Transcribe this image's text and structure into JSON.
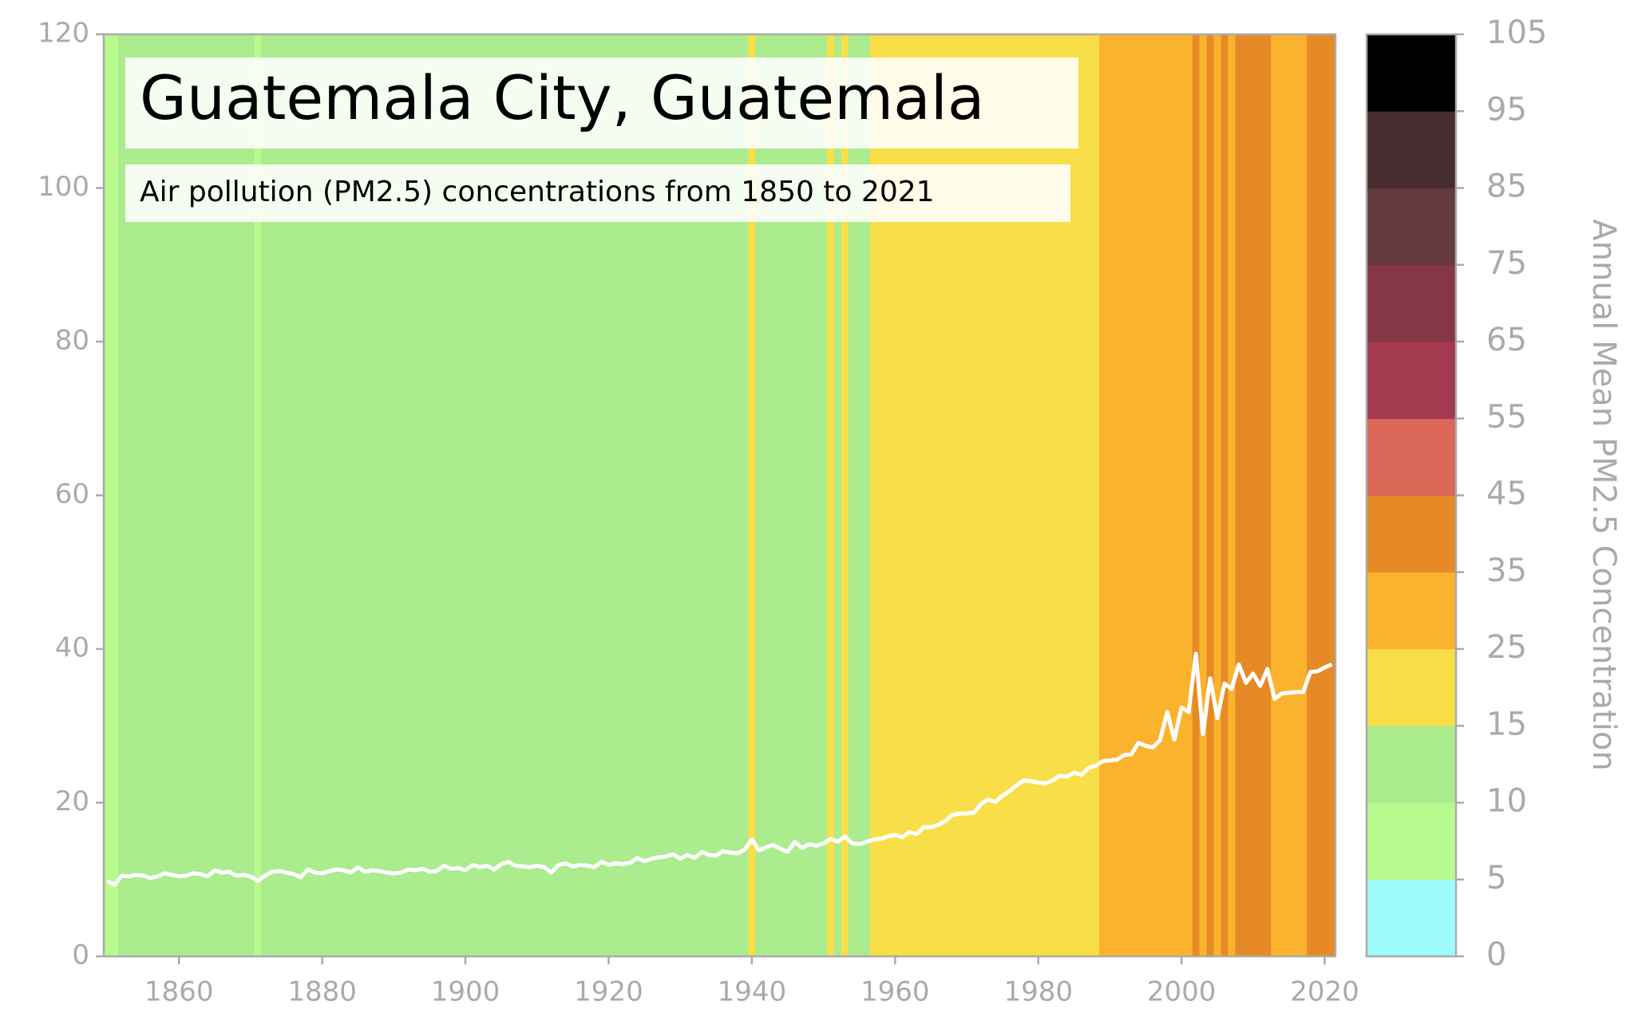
{
  "chart_data": {
    "type": "climate-stripes",
    "title": "Guatemala City, Guatemala",
    "subtitle": "Air pollution (PM2.5) concentrations from 1850 to 2021",
    "x": [
      1850,
      1851,
      1852,
      1853,
      1854,
      1855,
      1856,
      1857,
      1858,
      1859,
      1860,
      1861,
      1862,
      1863,
      1864,
      1865,
      1866,
      1867,
      1868,
      1869,
      1870,
      1871,
      1872,
      1873,
      1874,
      1875,
      1876,
      1877,
      1878,
      1879,
      1880,
      1881,
      1882,
      1883,
      1884,
      1885,
      1886,
      1887,
      1888,
      1889,
      1890,
      1891,
      1892,
      1893,
      1894,
      1895,
      1896,
      1897,
      1898,
      1899,
      1900,
      1901,
      1902,
      1903,
      1904,
      1905,
      1906,
      1907,
      1908,
      1909,
      1910,
      1911,
      1912,
      1913,
      1914,
      1915,
      1916,
      1917,
      1918,
      1919,
      1920,
      1921,
      1922,
      1923,
      1924,
      1925,
      1926,
      1927,
      1928,
      1929,
      1930,
      1931,
      1932,
      1933,
      1934,
      1935,
      1936,
      1937,
      1938,
      1939,
      1940,
      1941,
      1942,
      1943,
      1944,
      1945,
      1946,
      1947,
      1948,
      1949,
      1950,
      1951,
      1952,
      1953,
      1954,
      1955,
      1956,
      1957,
      1958,
      1959,
      1960,
      1961,
      1962,
      1963,
      1964,
      1965,
      1966,
      1967,
      1968,
      1969,
      1970,
      1971,
      1972,
      1973,
      1974,
      1975,
      1976,
      1977,
      1978,
      1979,
      1980,
      1981,
      1982,
      1983,
      1984,
      1985,
      1986,
      1987,
      1988,
      1989,
      1990,
      1991,
      1992,
      1993,
      1994,
      1995,
      1996,
      1997,
      1998,
      1999,
      2000,
      2001,
      2002,
      2003,
      2004,
      2005,
      2006,
      2007,
      2008,
      2009,
      2010,
      2011,
      2012,
      2013,
      2014,
      2015,
      2016,
      2017,
      2018,
      2019,
      2020,
      2021
    ],
    "values": [
      9.8,
      9.3,
      10.5,
      10.4,
      10.6,
      10.5,
      10.2,
      10.4,
      10.8,
      10.6,
      10.4,
      10.5,
      10.8,
      10.7,
      10.4,
      11.2,
      10.9,
      11.0,
      10.5,
      10.6,
      10.4,
      9.8,
      10.5,
      11.0,
      11.1,
      10.9,
      10.7,
      10.3,
      11.3,
      10.9,
      10.8,
      11.1,
      11.3,
      11.2,
      10.9,
      11.6,
      11.0,
      11.2,
      11.1,
      10.9,
      10.8,
      10.9,
      11.3,
      11.2,
      11.4,
      11.0,
      11.1,
      11.8,
      11.4,
      11.5,
      11.2,
      11.9,
      11.6,
      11.8,
      11.3,
      12.0,
      12.3,
      11.8,
      11.7,
      11.6,
      11.8,
      11.6,
      10.9,
      11.9,
      12.1,
      11.7,
      11.9,
      11.8,
      11.6,
      12.3,
      11.9,
      12.1,
      12.0,
      12.2,
      12.8,
      12.4,
      12.7,
      12.9,
      13.0,
      13.3,
      12.7,
      13.2,
      12.8,
      13.6,
      13.2,
      13.1,
      13.7,
      13.5,
      13.4,
      13.9,
      15.2,
      13.8,
      14.2,
      14.5,
      14.0,
      13.6,
      14.9,
      14.1,
      14.6,
      14.4,
      14.7,
      15.3,
      14.9,
      15.6,
      14.7,
      14.6,
      14.9,
      15.2,
      15.3,
      15.6,
      15.8,
      15.5,
      16.2,
      15.9,
      16.8,
      16.8,
      17.1,
      17.6,
      18.4,
      18.6,
      18.6,
      18.7,
      19.8,
      20.4,
      20.1,
      20.9,
      21.5,
      22.3,
      22.9,
      22.8,
      22.6,
      22.5,
      22.9,
      23.5,
      23.4,
      23.9,
      23.6,
      24.5,
      24.8,
      25.4,
      25.5,
      25.6,
      26.2,
      26.3,
      27.8,
      27.4,
      27.2,
      28.1,
      31.8,
      28.2,
      32.4,
      31.8,
      39.4,
      28.9,
      36.2,
      31.0,
      35.5,
      34.8,
      38.0,
      35.6,
      36.8,
      35.2,
      37.4,
      33.5,
      34.2,
      34.3,
      34.4,
      34.4,
      37.0,
      37.1,
      37.6,
      38.0
    ],
    "color": "#ffffff",
    "xlim": [
      1849.5,
      2021.5
    ],
    "xticks": [
      1860,
      1880,
      1900,
      1920,
      1940,
      1960,
      1980,
      2000,
      2020
    ],
    "ylim": [
      0,
      120
    ],
    "yticks": [
      0,
      20,
      40,
      60,
      80,
      100,
      120
    ],
    "colorbar": {
      "label": "Annual Mean PM2.5 Concentration",
      "bounds": [
        0,
        5,
        10,
        15,
        25,
        35,
        45,
        55,
        65,
        75,
        85,
        95,
        105
      ],
      "colors": [
        "#9ffcfc",
        "#b8fa8e",
        "#aaec8e",
        "#f8df48",
        "#fbb32d",
        "#e68a27",
        "#db6758",
        "#a43a50",
        "#863745",
        "#653a3e",
        "#472d30",
        "#000000"
      ]
    }
  }
}
